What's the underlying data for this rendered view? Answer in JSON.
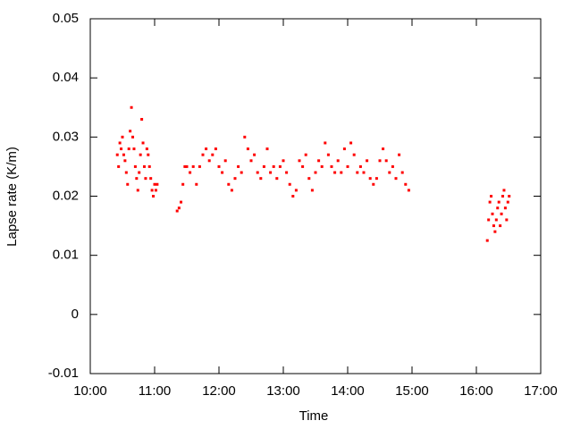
{
  "chart_data": {
    "type": "scatter",
    "xlabel": "Time",
    "ylabel": "Lapse rate (K/m)",
    "color": "#ff0000",
    "xlim": [
      10,
      17
    ],
    "xticks": [
      {
        "value": 10,
        "label": "10:00"
      },
      {
        "value": 11,
        "label": "11:00"
      },
      {
        "value": 12,
        "label": "12:00"
      },
      {
        "value": 13,
        "label": "13:00"
      },
      {
        "value": 14,
        "label": "14:00"
      },
      {
        "value": 15,
        "label": "15:00"
      },
      {
        "value": 16,
        "label": "16:00"
      },
      {
        "value": 17,
        "label": "17:00"
      }
    ],
    "ylim": [
      -0.01,
      0.05
    ],
    "yticks": [
      -0.01,
      0,
      0.01,
      0.02,
      0.03,
      0.04,
      0.05
    ],
    "x": [
      10.42,
      10.44,
      10.46,
      10.48,
      10.5,
      10.52,
      10.54,
      10.56,
      10.58,
      10.6,
      10.62,
      10.64,
      10.66,
      10.68,
      10.7,
      10.72,
      10.74,
      10.76,
      10.78,
      10.8,
      10.82,
      10.84,
      10.86,
      10.88,
      10.9,
      10.92,
      10.94,
      10.96,
      10.98,
      11.0,
      11.02,
      11.04,
      11.35,
      11.38,
      11.41,
      11.44,
      11.47,
      11.5,
      11.55,
      11.6,
      11.65,
      11.7,
      11.75,
      11.8,
      11.85,
      11.9,
      11.95,
      12.0,
      12.05,
      12.1,
      12.15,
      12.2,
      12.25,
      12.3,
      12.35,
      12.4,
      12.45,
      12.5,
      12.55,
      12.6,
      12.65,
      12.7,
      12.75,
      12.8,
      12.85,
      12.9,
      12.95,
      13.0,
      13.05,
      13.1,
      13.15,
      13.2,
      13.25,
      13.3,
      13.35,
      13.4,
      13.45,
      13.5,
      13.55,
      13.6,
      13.65,
      13.7,
      13.75,
      13.8,
      13.85,
      13.9,
      13.95,
      14.0,
      14.05,
      14.1,
      14.15,
      14.2,
      14.25,
      14.3,
      14.35,
      14.4,
      14.45,
      14.5,
      14.55,
      14.6,
      14.65,
      14.7,
      14.75,
      14.8,
      14.85,
      14.9,
      14.95,
      16.17,
      16.19,
      16.21,
      16.23,
      16.25,
      16.27,
      16.29,
      16.31,
      16.33,
      16.35,
      16.37,
      16.39,
      16.41,
      16.43,
      16.45,
      16.47,
      16.49,
      16.51
    ],
    "values": [
      0.027,
      0.025,
      0.029,
      0.028,
      0.03,
      0.027,
      0.026,
      0.024,
      0.022,
      0.028,
      0.031,
      0.035,
      0.03,
      0.028,
      0.025,
      0.023,
      0.021,
      0.024,
      0.027,
      0.033,
      0.029,
      0.025,
      0.023,
      0.028,
      0.027,
      0.025,
      0.023,
      0.021,
      0.02,
      0.022,
      0.021,
      0.022,
      0.0175,
      0.018,
      0.019,
      0.022,
      0.025,
      0.025,
      0.024,
      0.025,
      0.022,
      0.025,
      0.027,
      0.028,
      0.026,
      0.027,
      0.028,
      0.025,
      0.024,
      0.026,
      0.022,
      0.021,
      0.023,
      0.025,
      0.024,
      0.03,
      0.028,
      0.026,
      0.027,
      0.024,
      0.023,
      0.025,
      0.028,
      0.024,
      0.025,
      0.023,
      0.025,
      0.026,
      0.024,
      0.022,
      0.02,
      0.021,
      0.026,
      0.025,
      0.027,
      0.023,
      0.021,
      0.024,
      0.026,
      0.025,
      0.029,
      0.027,
      0.025,
      0.024,
      0.026,
      0.024,
      0.028,
      0.025,
      0.029,
      0.027,
      0.024,
      0.025,
      0.024,
      0.026,
      0.023,
      0.022,
      0.023,
      0.026,
      0.028,
      0.026,
      0.024,
      0.025,
      0.023,
      0.027,
      0.024,
      0.022,
      0.021,
      0.0125,
      0.016,
      0.019,
      0.02,
      0.017,
      0.015,
      0.014,
      0.016,
      0.018,
      0.019,
      0.015,
      0.017,
      0.02,
      0.021,
      0.018,
      0.016,
      0.019,
      0.02
    ]
  }
}
